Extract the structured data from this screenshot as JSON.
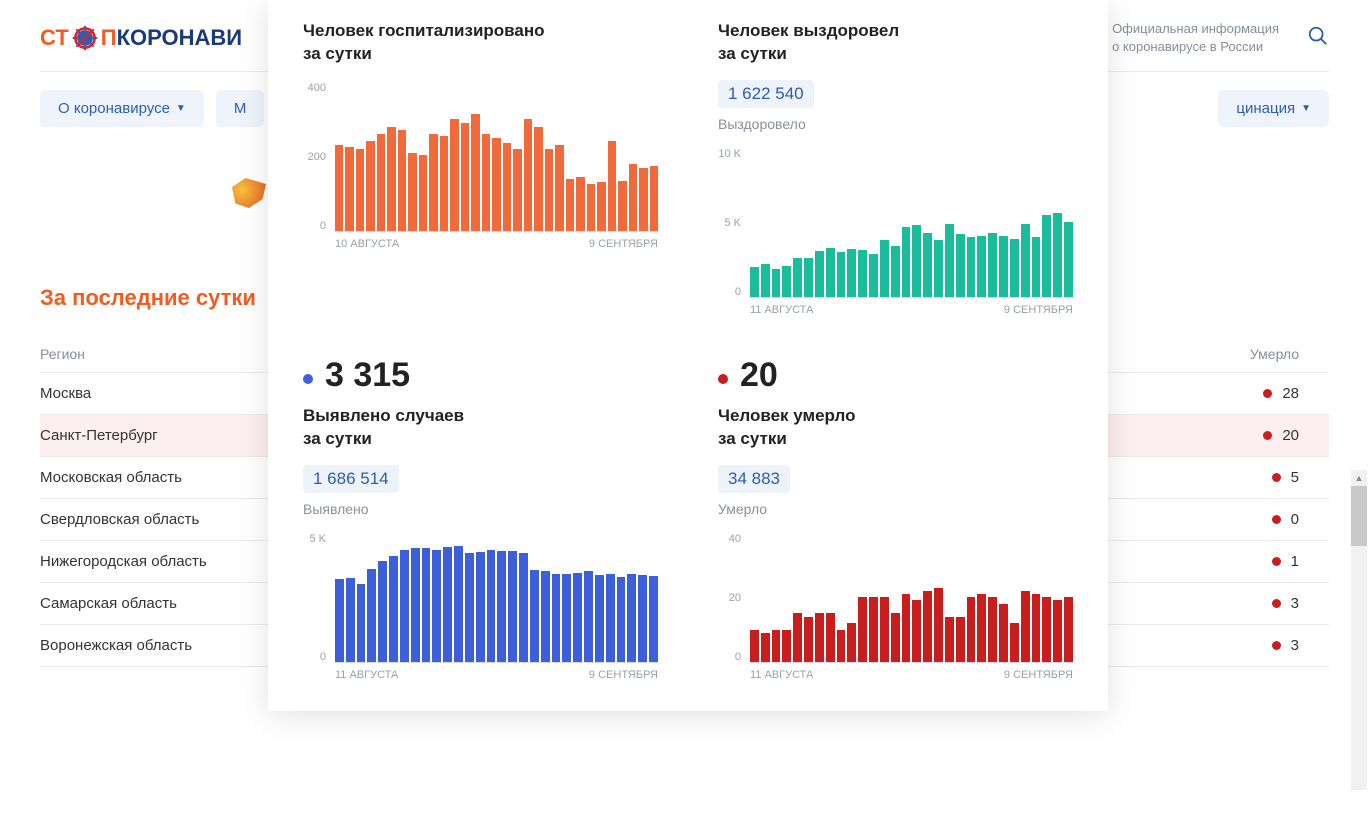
{
  "header": {
    "logo_st": "СТ",
    "logo_p": "П",
    "logo_rest": "КОРОНАВИ",
    "official_line1": "Официальная информация",
    "official_line2": "о коронавирусе в России"
  },
  "tabs": {
    "about": "О коронавирусе",
    "left_cut": "М",
    "right_cut": "цинация"
  },
  "section_title": "За последние сутки",
  "table": {
    "region_header": "Регион",
    "deaths_header": "Умерло",
    "rows": [
      {
        "region": "Москва",
        "deaths": 28
      },
      {
        "region": "Санкт-Петербург",
        "deaths": 20,
        "highlight": true
      },
      {
        "region": "Московская область",
        "deaths": 5
      },
      {
        "region": "Свердловская область",
        "deaths": 0
      },
      {
        "region": "Нижегородская область",
        "deaths": 1
      },
      {
        "region": "Самарская область",
        "deaths": 3
      },
      {
        "region": "Воронежская область",
        "deaths": 3
      }
    ]
  },
  "stats": {
    "hospitalized": {
      "label_l1": "Человек госпитализировано",
      "label_l2": "за сутки",
      "color": "#f06a3c",
      "chart": {
        "ymax": 400,
        "ystep": 200,
        "xstart": "10 АВГУСТА",
        "xend": "9 СЕНТЯБРЯ",
        "values": [
          230,
          225,
          220,
          240,
          260,
          280,
          270,
          210,
          205,
          260,
          255,
          300,
          290,
          315,
          260,
          250,
          235,
          220,
          300,
          280,
          220,
          230,
          140,
          145,
          125,
          130,
          240,
          135,
          180,
          170,
          175
        ]
      }
    },
    "recovered": {
      "label_l1": "Человек выздоровел",
      "label_l2": "за сутки",
      "total": "1 622 540",
      "total_label": "Выздоровело",
      "color": "#1abc9c",
      "chart": {
        "ymax": 10000,
        "ystep": 5000,
        "y_tick_labels": [
          "10 K",
          "5 K",
          "0"
        ],
        "xstart": "11 АВГУСТА",
        "xend": "9 СЕНТЯБРЯ",
        "values": [
          2000,
          2200,
          1900,
          2050,
          2600,
          2600,
          3100,
          3300,
          3000,
          3200,
          3150,
          2900,
          3800,
          3400,
          4700,
          4800,
          4300,
          3800,
          4900,
          4200,
          4000,
          4100,
          4300,
          4100,
          3900,
          4900,
          4000,
          5500,
          5600,
          5000
        ]
      }
    },
    "cases": {
      "big": "3 315",
      "label_l1": "Выявлено случаев",
      "label_l2": "за сутки",
      "total": "1 686 514",
      "total_label": "Выявлено",
      "dot_color": "blue",
      "color": "#3d5fd9",
      "chart": {
        "ymax": 5000,
        "ystep": 5000,
        "y_tick_labels": [
          "5 K",
          "0"
        ],
        "xstart": "11 АВГУСТА",
        "xend": "9 СЕНТЯБРЯ",
        "values": [
          3200,
          3250,
          3000,
          3600,
          3900,
          4100,
          4350,
          4400,
          4400,
          4350,
          4450,
          4500,
          4200,
          4250,
          4350,
          4300,
          4300,
          4200,
          3550,
          3500,
          3400,
          3400,
          3450,
          3500,
          3350,
          3400,
          3300,
          3400,
          3380,
          3315
        ]
      }
    },
    "deaths": {
      "big": "20",
      "label_l1": "Человек умерло",
      "label_l2": "за сутки",
      "total": "34 883",
      "total_label": "Умерло",
      "dot_color": "red",
      "color": "#c91e1e",
      "chart": {
        "ymax": 40,
        "ystep": 20,
        "xstart": "11 АВГУСТА",
        "xend": "9 СЕНТЯБРЯ",
        "values": [
          10,
          9,
          10,
          10,
          15,
          14,
          15,
          15,
          10,
          12,
          20,
          20,
          20,
          15,
          21,
          19,
          22,
          23,
          14,
          14,
          20,
          21,
          20,
          18,
          12,
          22,
          21,
          20,
          19,
          20
        ]
      }
    }
  }
}
